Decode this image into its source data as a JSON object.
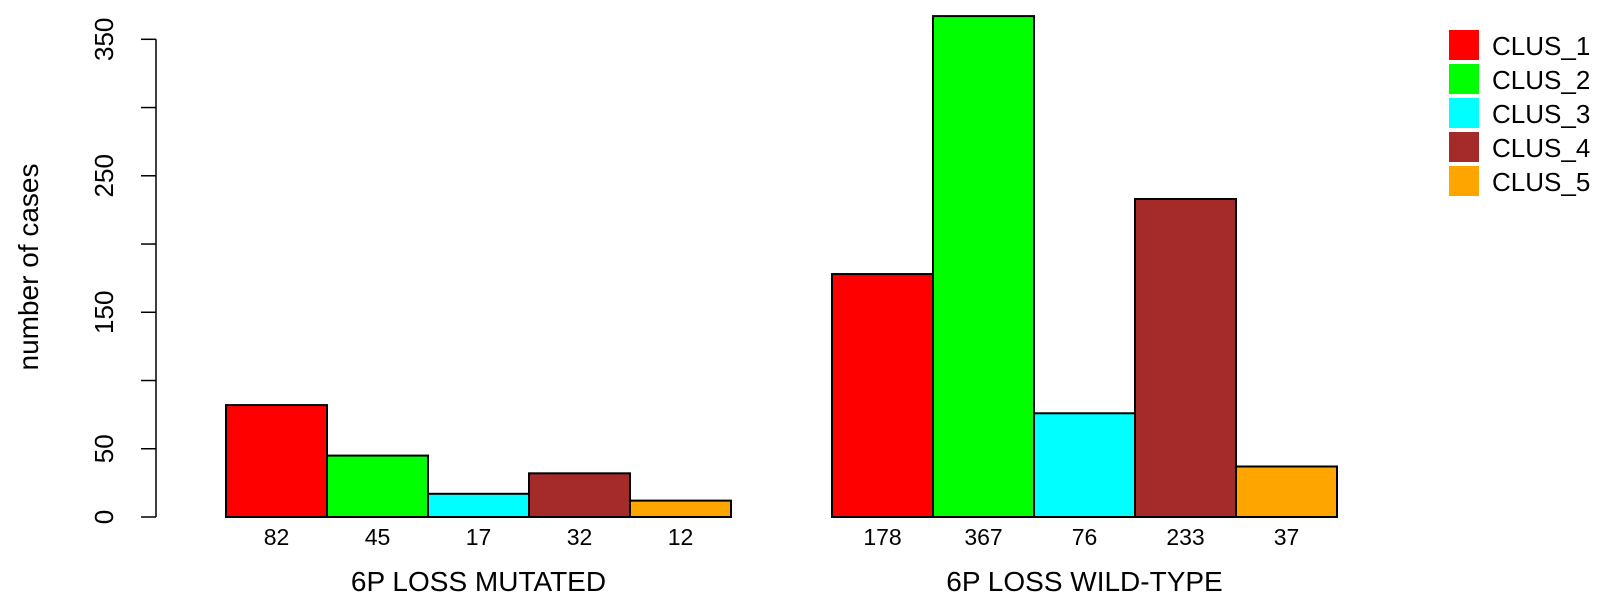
{
  "chart_data": {
    "type": "bar",
    "ylabel": "number of cases",
    "ylim": [
      0,
      370
    ],
    "yticks": [
      0,
      50,
      100,
      150,
      200,
      250,
      300,
      350
    ],
    "ytick_labels": [
      "0",
      "50",
      "",
      "150",
      "",
      "250",
      "",
      "350"
    ],
    "groups": [
      "6P LOSS MUTATED",
      "6P LOSS WILD-TYPE"
    ],
    "series": [
      {
        "name": "CLUS_1",
        "color": "#ff0000",
        "values": [
          82,
          178
        ]
      },
      {
        "name": "CLUS_2",
        "color": "#00ff00",
        "values": [
          45,
          367
        ]
      },
      {
        "name": "CLUS_3",
        "color": "#00ffff",
        "values": [
          17,
          76
        ]
      },
      {
        "name": "CLUS_4",
        "color": "#a52a2a",
        "values": [
          32,
          233
        ]
      },
      {
        "name": "CLUS_5",
        "color": "#ffa500",
        "values": [
          12,
          37
        ]
      }
    ],
    "count_labels": [
      [
        "82",
        "45",
        "17",
        "32",
        "12"
      ],
      [
        "178",
        "367",
        "76",
        "233",
        "37"
      ]
    ],
    "legend_position": "top-right",
    "grid": false
  }
}
